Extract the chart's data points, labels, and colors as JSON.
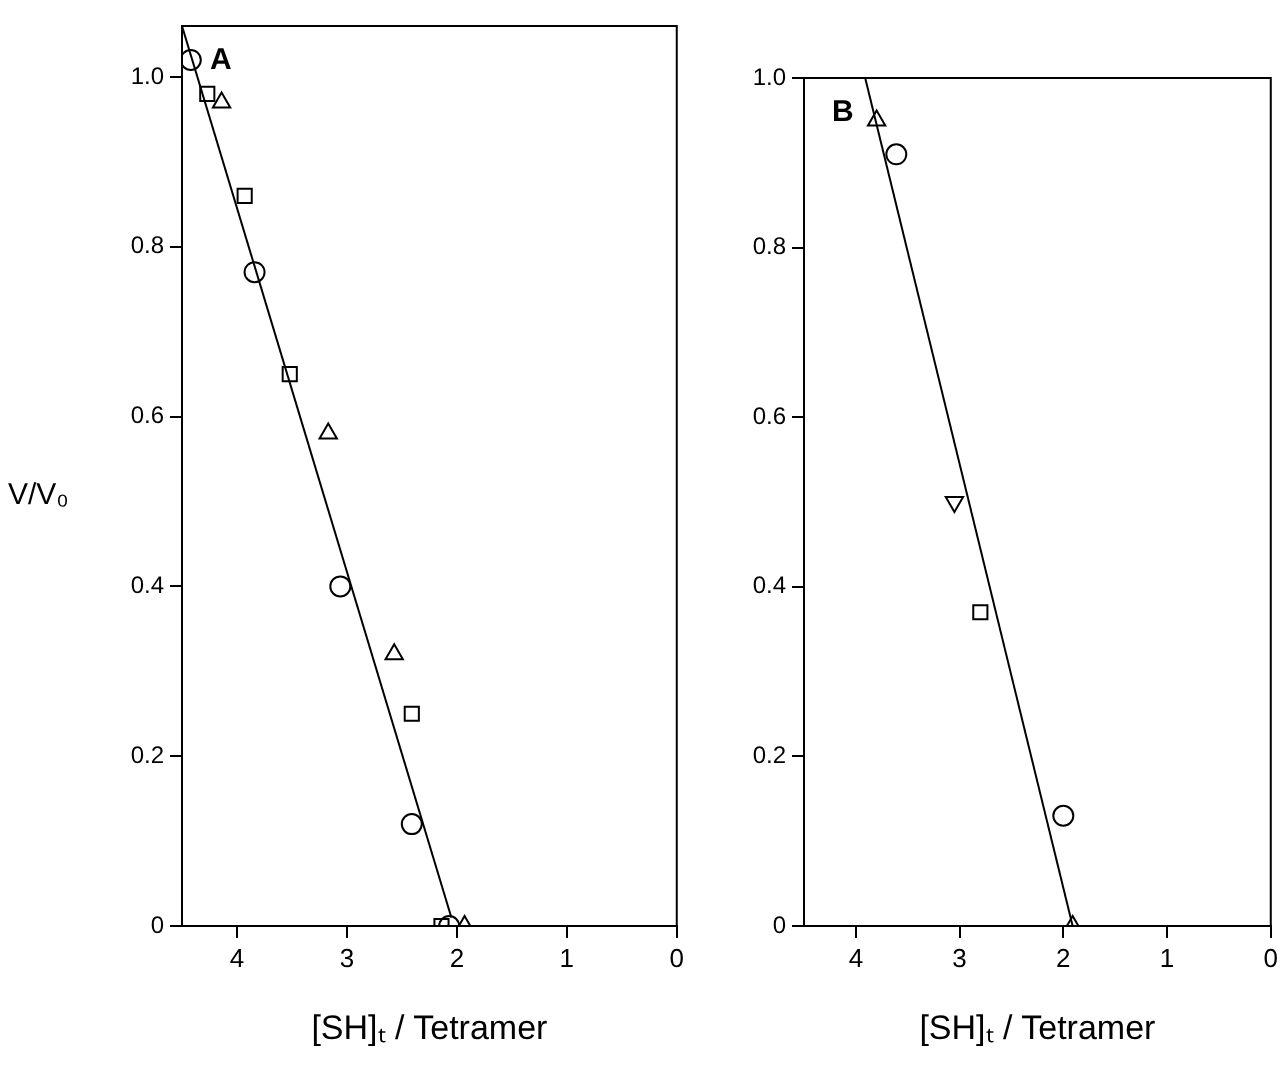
{
  "chart_data": [
    {
      "type": "scatter",
      "annotations": [
        "A"
      ],
      "xlabel": "[SH]ₜ / Tetramer",
      "ylabel": "V/V₀",
      "xlim": [
        4.5,
        0
      ],
      "ylim": [
        0,
        1.06
      ],
      "xticks": [
        4,
        3,
        2,
        1,
        0
      ],
      "yticks": [
        {
          "value": 0,
          "label": "0"
        },
        {
          "value": 0.2,
          "label": "0.2"
        },
        {
          "value": 0.4,
          "label": "0.4"
        },
        {
          "value": 0.6,
          "label": "0.6"
        },
        {
          "value": 0.8,
          "label": "0.8"
        },
        {
          "value": 1,
          "label": "1.0"
        }
      ],
      "grid": false,
      "legend": false,
      "series": [
        {
          "type": "scatter",
          "marker": "circle",
          "color": "#000000",
          "x": [
            4.42,
            3.84,
            3.06,
            2.41,
            2.07
          ],
          "values": [
            1.02,
            0.77,
            0.4,
            0.12,
            0
          ]
        },
        {
          "type": "scatter",
          "marker": "square",
          "color": "#000000",
          "x": [
            4.27,
            3.93,
            3.52,
            2.41,
            2.14
          ],
          "values": [
            0.98,
            0.86,
            0.65,
            0.25,
            0
          ]
        },
        {
          "type": "scatter",
          "marker": "triangle",
          "color": "#000000",
          "x": [
            4.14,
            3.17,
            2.57,
            1.93
          ],
          "values": [
            0.97,
            0.58,
            0.32,
            0
          ]
        },
        {
          "type": "line",
          "marker": "none",
          "color": "#000000",
          "x": [
            4.5,
            2.05
          ],
          "values": [
            1.06,
            0.01
          ]
        }
      ]
    },
    {
      "type": "scatter",
      "annotations": [
        "B"
      ],
      "xlabel": "[SH]ₜ / Tetramer",
      "xlim": [
        4.5,
        0
      ],
      "ylim": [
        0,
        1.0
      ],
      "xticks": [
        4,
        3,
        2,
        1,
        0
      ],
      "yticks": [
        {
          "value": 0,
          "label": "0"
        },
        {
          "value": 0.2,
          "label": "0.2"
        },
        {
          "value": 0.4,
          "label": "0.4"
        },
        {
          "value": 0.6,
          "label": "0.6"
        },
        {
          "value": 0.8,
          "label": "0.8"
        },
        {
          "value": 1,
          "label": "1.0"
        }
      ],
      "grid": false,
      "legend": false,
      "series": [
        {
          "type": "scatter",
          "marker": "triangle",
          "color": "#000000",
          "x": [
            3.8,
            1.91
          ],
          "values": [
            0.95,
            0
          ]
        },
        {
          "type": "scatter",
          "marker": "circle",
          "color": "#000000",
          "x": [
            3.61,
            2.0
          ],
          "values": [
            0.91,
            0.13
          ]
        },
        {
          "type": "scatter",
          "marker": "triangle-down",
          "color": "#000000",
          "x": [
            3.05
          ],
          "values": [
            0.5
          ]
        },
        {
          "type": "scatter",
          "marker": "square",
          "color": "#000000",
          "x": [
            2.8
          ],
          "values": [
            0.37
          ]
        },
        {
          "type": "line",
          "marker": "none",
          "color": "#000000",
          "x": [
            3.91,
            1.91
          ],
          "values": [
            1.0,
            0
          ]
        }
      ]
    }
  ]
}
